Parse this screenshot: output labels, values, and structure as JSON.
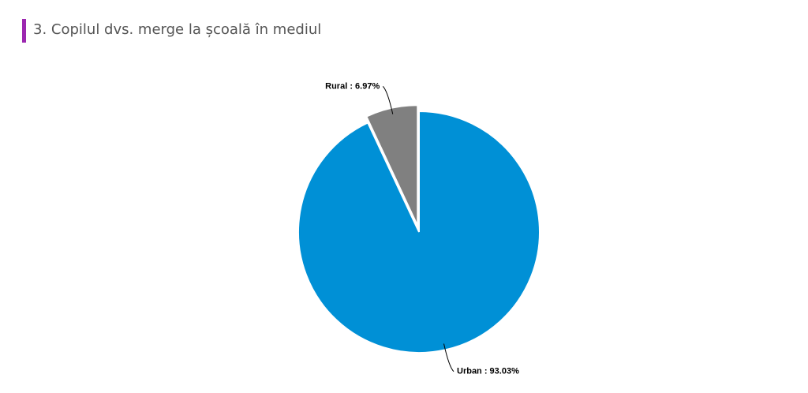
{
  "chart_data": {
    "type": "pie",
    "title": "3. Copilul dvs. merge la școală în mediul",
    "values": [
      93.03,
      6.97
    ],
    "value_labels": [
      "Urban : 93.03%",
      "Rural : 6.97%"
    ],
    "colors": [
      "#0090d6",
      "#808080"
    ],
    "exploded": [
      false,
      true
    ]
  }
}
